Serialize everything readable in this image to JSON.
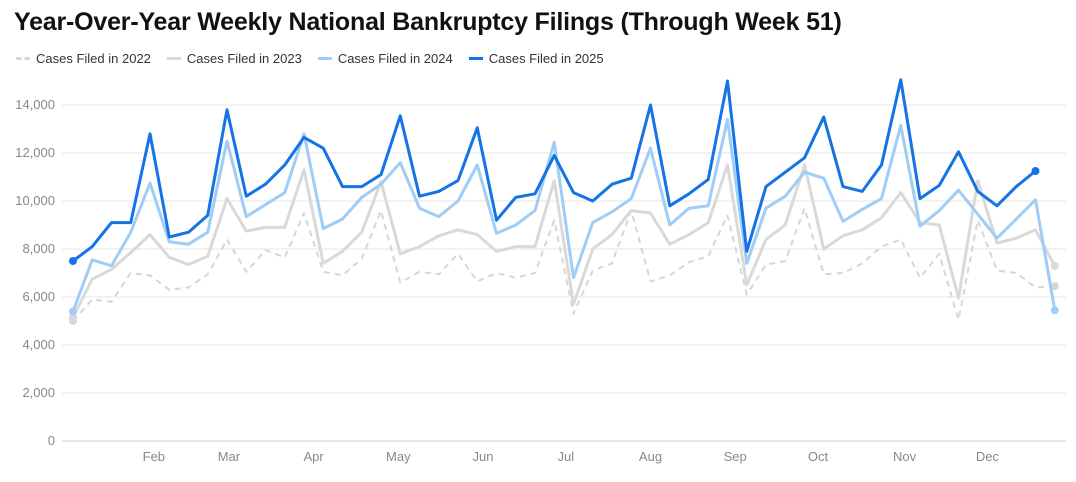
{
  "chart_data": {
    "type": "line",
    "title": "Year-Over-Year Weekly National Bankruptcy Filings (Through Week 51)",
    "xlabel": "",
    "ylabel": "",
    "ylim": [
      0,
      14000
    ],
    "yticks": [
      0,
      2000,
      4000,
      6000,
      8000,
      10000,
      12000,
      14000
    ],
    "ytick_labels": [
      "0",
      "2,000",
      "4,000",
      "6,000",
      "8,000",
      "10,000",
      "12,000",
      "14,000"
    ],
    "xlim_weeks": [
      1,
      52
    ],
    "month_ticks": [
      {
        "label": "Feb",
        "week": 5.2
      },
      {
        "label": "Mar",
        "week": 9.1
      },
      {
        "label": "Apr",
        "week": 13.5
      },
      {
        "label": "May",
        "week": 17.9
      },
      {
        "label": "Jun",
        "week": 22.3
      },
      {
        "label": "Jul",
        "week": 26.6
      },
      {
        "label": "Aug",
        "week": 31
      },
      {
        "label": "Sep",
        "week": 35.4
      },
      {
        "label": "Oct",
        "week": 39.7
      },
      {
        "label": "Nov",
        "week": 44.2
      },
      {
        "label": "Dec",
        "week": 48.5
      }
    ],
    "grid": true,
    "legend_position": "top-left",
    "series": [
      {
        "name": "Cases Filed in 2022",
        "color": "#d6d6d6",
        "dashed": true,
        "width": 2,
        "values": [
          5000,
          5900,
          5800,
          7000,
          6900,
          6300,
          6400,
          6950,
          8400,
          7050,
          7950,
          7650,
          9500,
          7050,
          6900,
          7600,
          9600,
          6600,
          7050,
          6950,
          7800,
          6650,
          7000,
          6800,
          7000,
          9200,
          5300,
          7100,
          7400,
          9600,
          6650,
          6900,
          7450,
          7700,
          9400,
          6100,
          7350,
          7500,
          9700,
          6950,
          7000,
          7400,
          8100,
          8400,
          6800,
          7800,
          5050,
          9200,
          7100,
          7000,
          6400,
          6450
        ]
      },
      {
        "name": "Cases Filed in 2023",
        "color": "#d9d9d9",
        "dashed": false,
        "width": 3,
        "values": [
          5150,
          6750,
          7150,
          7850,
          8600,
          7650,
          7350,
          7700,
          10100,
          8750,
          8900,
          8900,
          11300,
          7400,
          7900,
          8700,
          10800,
          7800,
          8100,
          8550,
          8800,
          8600,
          7900,
          8100,
          8100,
          10850,
          5700,
          8000,
          8600,
          9600,
          9500,
          8200,
          8600,
          9100,
          11500,
          6500,
          8400,
          9000,
          11500,
          8000,
          8550,
          8800,
          9300,
          10350,
          9100,
          9000,
          5950,
          10850,
          8250,
          8450,
          8800,
          7300
        ]
      },
      {
        "name": "Cases Filed in 2024",
        "color": "#9fcdf5",
        "dashed": false,
        "width": 3,
        "values": [
          5400,
          7550,
          7300,
          8700,
          10750,
          8300,
          8200,
          8700,
          12500,
          9350,
          9850,
          10350,
          12800,
          8850,
          9250,
          10150,
          10700,
          11600,
          9700,
          9350,
          10000,
          11500,
          8650,
          9000,
          9600,
          12450,
          6800,
          9100,
          9550,
          10100,
          12200,
          9000,
          9700,
          9800,
          13400,
          7400,
          9700,
          10200,
          11200,
          10950,
          9150,
          9650,
          10100,
          13150,
          8950,
          9600,
          10450,
          9450,
          8450,
          9250,
          10050,
          5450
        ]
      },
      {
        "name": "Cases Filed in 2025",
        "color": "#1473e6",
        "dashed": false,
        "width": 3,
        "values": [
          7500,
          8100,
          9100,
          9100,
          12800,
          8500,
          8700,
          9400,
          13800,
          10200,
          10700,
          11500,
          12650,
          12200,
          10600,
          10600,
          11100,
          13550,
          10200,
          10400,
          10850,
          13050,
          9200,
          10150,
          10300,
          11900,
          10350,
          10000,
          10700,
          10950,
          14000,
          9800,
          10300,
          10900,
          15000,
          7900,
          10600,
          11200,
          11800,
          13500,
          10600,
          10400,
          11500,
          15050,
          10100,
          10650,
          12050,
          10400,
          9800,
          10600,
          11250
        ]
      }
    ]
  }
}
